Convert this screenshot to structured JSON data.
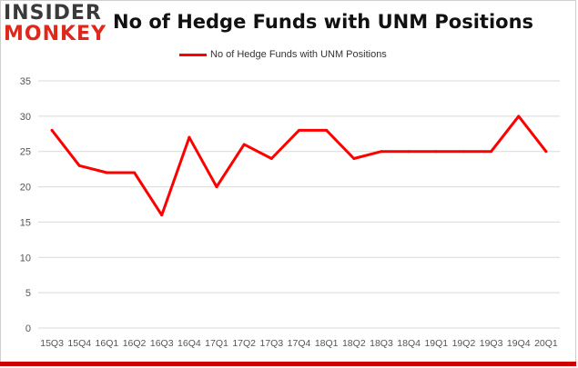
{
  "brand": {
    "logo_top": "INSIDER",
    "logo_bottom": "MONKEY"
  },
  "chart_data": {
    "type": "line",
    "title": "No of Hedge Funds with UNM Positions",
    "xlabel": "",
    "ylabel": "",
    "categories": [
      "15Q3",
      "15Q4",
      "16Q1",
      "16Q2",
      "16Q3",
      "16Q4",
      "17Q1",
      "17Q2",
      "17Q3",
      "17Q4",
      "18Q1",
      "18Q2",
      "18Q3",
      "18Q4",
      "19Q1",
      "19Q2",
      "19Q3",
      "19Q4",
      "20Q1"
    ],
    "series": [
      {
        "name": "No of Hedge Funds with UNM Positions",
        "values": [
          28,
          23,
          22,
          22,
          16,
          27,
          20,
          26,
          24,
          28,
          28,
          24,
          25,
          25,
          25,
          25,
          25,
          30,
          25
        ]
      }
    ],
    "ylim": [
      0,
      35
    ],
    "yticks": [
      0,
      5,
      10,
      15,
      20,
      25,
      30,
      35
    ],
    "grid": true,
    "legend_position": "top-center",
    "colors": {
      "line": "#ff0000",
      "grid": "#d9d9d9",
      "axis_text": "#555555"
    }
  }
}
